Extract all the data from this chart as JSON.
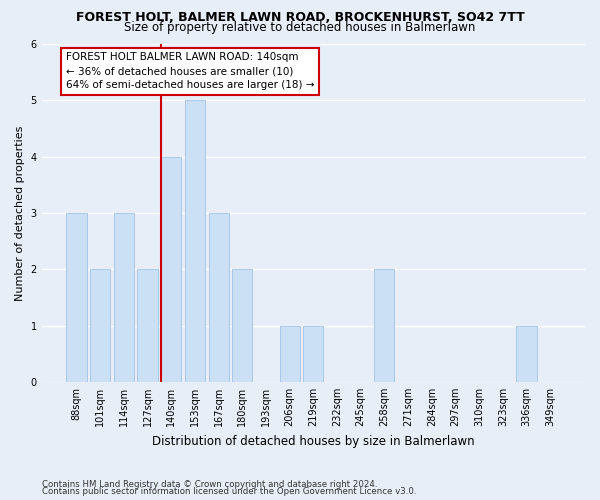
{
  "title1": "FOREST HOLT, BALMER LAWN ROAD, BROCKENHURST, SO42 7TT",
  "title2": "Size of property relative to detached houses in Balmerlawn",
  "xlabel": "Distribution of detached houses by size in Balmerlawn",
  "ylabel": "Number of detached properties",
  "categories": [
    "88sqm",
    "101sqm",
    "114sqm",
    "127sqm",
    "140sqm",
    "153sqm",
    "167sqm",
    "180sqm",
    "193sqm",
    "206sqm",
    "219sqm",
    "232sqm",
    "245sqm",
    "258sqm",
    "271sqm",
    "284sqm",
    "297sqm",
    "310sqm",
    "323sqm",
    "336sqm",
    "349sqm"
  ],
  "values": [
    3,
    2,
    3,
    2,
    4,
    5,
    3,
    2,
    0,
    1,
    1,
    0,
    0,
    2,
    0,
    0,
    0,
    0,
    0,
    1,
    0
  ],
  "bar_color": "#cce0f5",
  "bar_edge_color": "#aac8e8",
  "highlight_index": 4,
  "highlight_line_color": "#cc0000",
  "ylim": [
    0,
    6
  ],
  "yticks": [
    0,
    1,
    2,
    3,
    4,
    5,
    6
  ],
  "annotation_line1": "FOREST HOLT BALMER LAWN ROAD: 140sqm",
  "annotation_line2": "← 36% of detached houses are smaller (10)",
  "annotation_line3": "64% of semi-detached houses are larger (18) →",
  "annotation_box_facecolor": "#ffffff",
  "annotation_box_edgecolor": "#cc0000",
  "footer1": "Contains HM Land Registry data © Crown copyright and database right 2024.",
  "footer2": "Contains public sector information licensed under the Open Government Licence v3.0.",
  "bg_color": "#e8eef8",
  "plot_bg_color": "#e8eef8"
}
